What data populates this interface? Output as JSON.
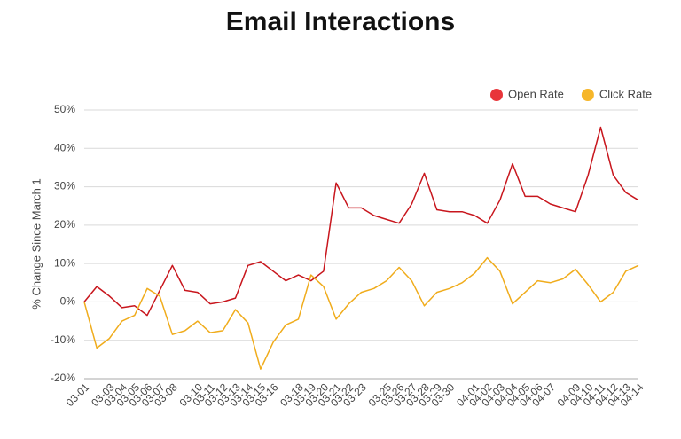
{
  "chart_data": {
    "type": "line",
    "title": "Email Interactions",
    "y_label": "% Change Since March 1",
    "categories": [
      "03-01",
      null,
      "03-03",
      "03-04",
      "03-05",
      "03-06",
      "03-07",
      "03-08",
      null,
      "03-10",
      "03-11",
      "03-12",
      "03-13",
      "03-14",
      "03-15",
      "03-16",
      null,
      "03-18",
      "03-19",
      "03-20",
      "03-21",
      "03-22",
      "03-23",
      null,
      "03-25",
      "03-26",
      "03-27",
      "03-28",
      "03-29",
      "03-30",
      null,
      "04-01",
      "04-02",
      "04-03",
      "04-04",
      "04-05",
      "04-06",
      "04-07",
      null,
      "04-09",
      "04-10",
      "04-11",
      "04-12",
      "04-13",
      "04-14"
    ],
    "series": [
      {
        "name": "Open Rate",
        "color": "#c8161d",
        "legend_color": "#e8353a",
        "values": [
          0,
          4,
          1.5,
          -1.5,
          -1,
          -3.5,
          3,
          9.5,
          3,
          2.5,
          -0.5,
          0,
          1,
          9.5,
          10.5,
          8,
          5.5,
          7,
          5.5,
          8,
          31,
          24.5,
          24.5,
          22.5,
          21.5,
          20.5,
          25.5,
          33.5,
          24,
          23.5,
          23.5,
          22.5,
          20.5,
          26.5,
          36,
          27.5,
          27.5,
          25.5,
          24.5,
          23.5,
          33,
          45.5,
          33,
          28.5,
          26.5
        ]
      },
      {
        "name": "Click Rate",
        "color": "#f0ac1c",
        "legend_color": "#f6b629",
        "values": [
          0,
          -12,
          -9.5,
          -5,
          -3.5,
          3.5,
          1.5,
          -8.5,
          -7.5,
          -5,
          -8,
          -7.5,
          -2,
          -5.5,
          -17.5,
          -10.5,
          -6,
          -4.5,
          7,
          4,
          -4.5,
          -0.5,
          2.5,
          3.5,
          5.5,
          9,
          5.5,
          -1,
          2.5,
          3.5,
          5,
          7.5,
          11.5,
          8,
          -0.5,
          2.5,
          5.5,
          5,
          6,
          8.5,
          4.5,
          0,
          2.5,
          8,
          9.5
        ]
      }
    ],
    "ylim": [
      -20,
      50
    ],
    "yticks": [
      {
        "value": -20,
        "label": "-20%"
      },
      {
        "value": -10,
        "label": "-10%"
      },
      {
        "value": 0,
        "label": "0%"
      },
      {
        "value": 10,
        "label": "10%"
      },
      {
        "value": 20,
        "label": "20%"
      },
      {
        "value": 30,
        "label": "30%"
      },
      {
        "value": 40,
        "label": "40%"
      },
      {
        "value": 50,
        "label": "50%"
      }
    ],
    "grid": true,
    "legend": "top-right"
  }
}
